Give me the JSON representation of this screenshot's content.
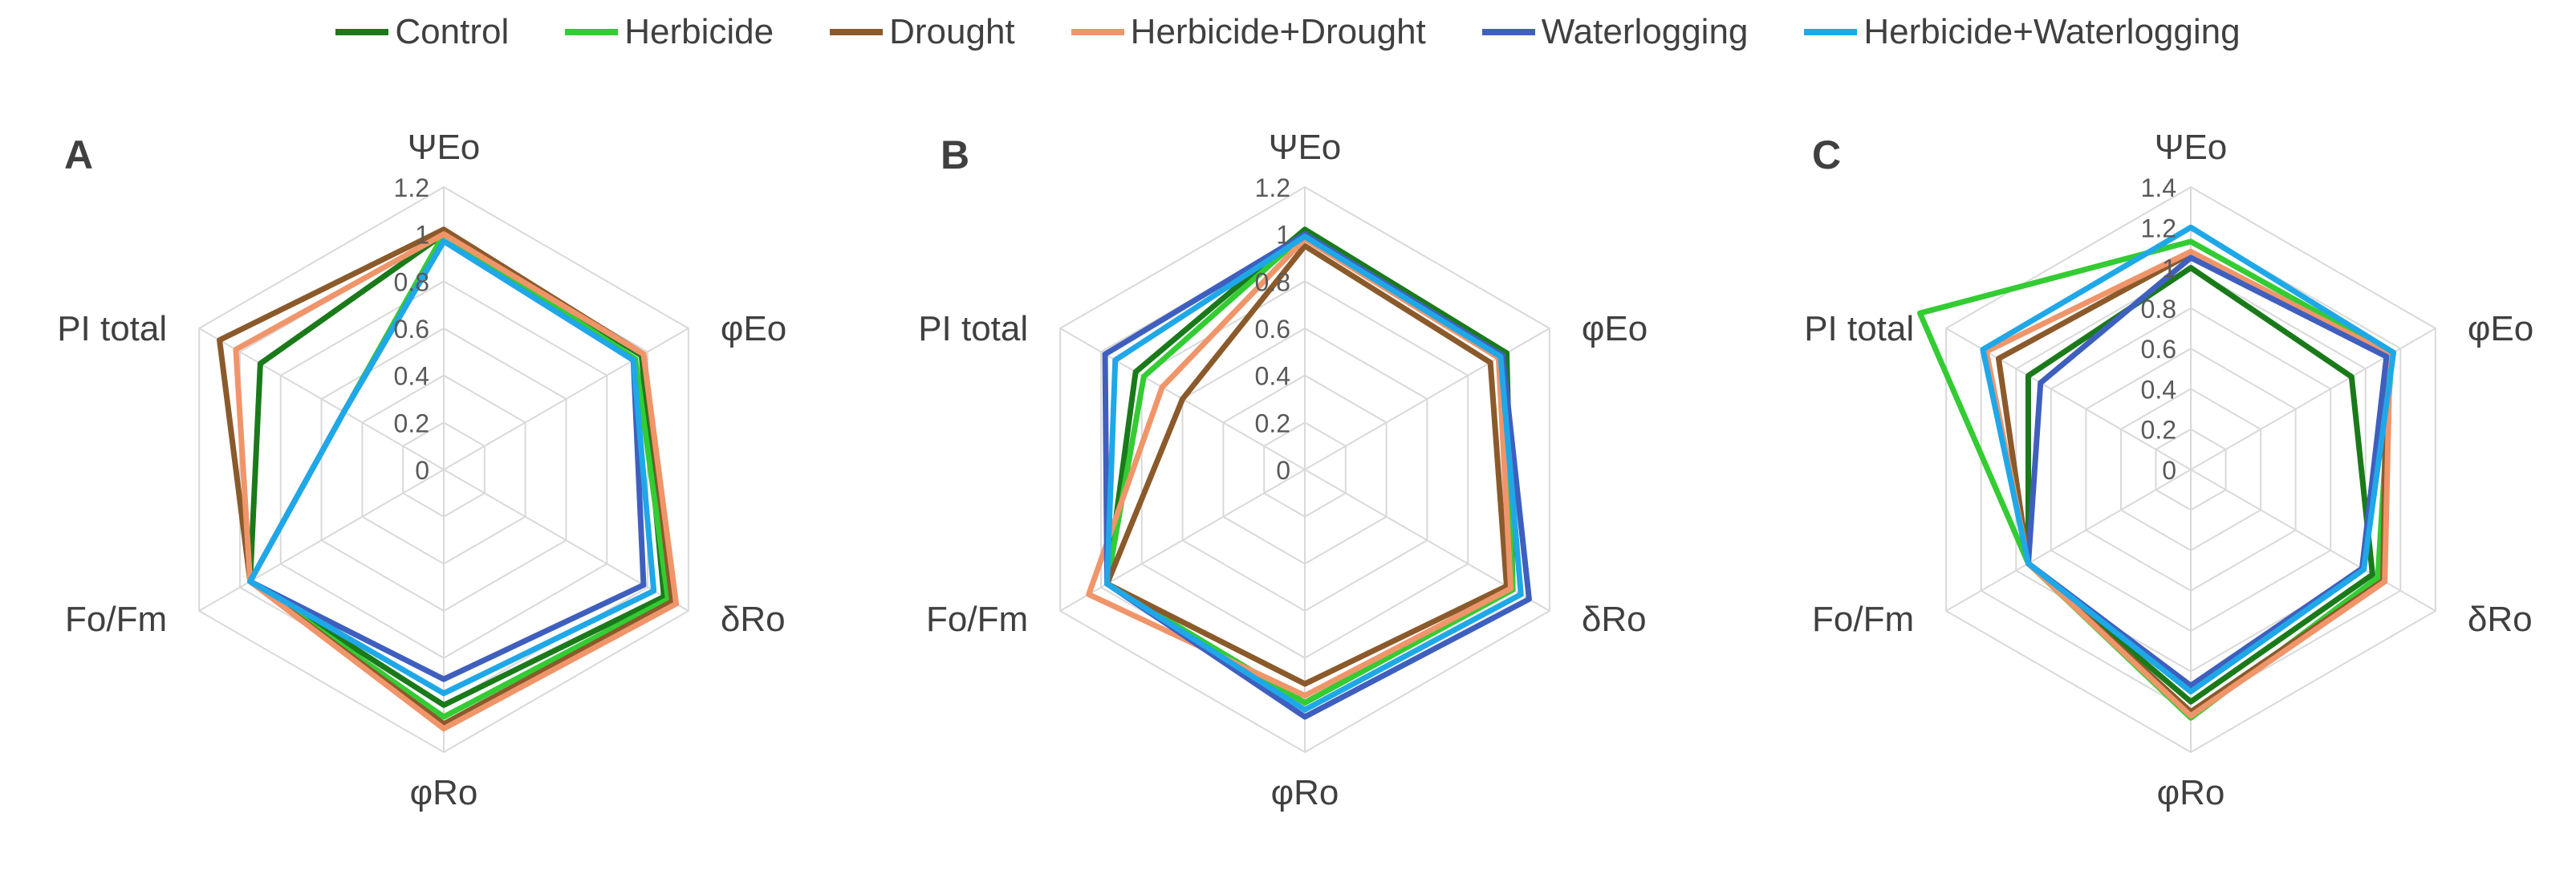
{
  "legend": [
    {
      "name": "Control",
      "color": "#1a7a1a"
    },
    {
      "name": "Herbicide",
      "color": "#33cc33"
    },
    {
      "name": "Drought",
      "color": "#8b5a2b"
    },
    {
      "name": "Herbicide+Drought",
      "color": "#f0956a"
    },
    {
      "name": "Waterlogging",
      "color": "#3f5fbf"
    },
    {
      "name": "Herbicide+Waterlogging",
      "color": "#1fa8e8"
    }
  ],
  "chart_data": [
    {
      "type": "radar",
      "panel_label": "A",
      "axes": [
        "ΨEo",
        "φEo",
        "δRo",
        "φRo",
        "Fo/Fm",
        "PI total"
      ],
      "rmax": 1.2,
      "ticks": [
        "0",
        "0.2",
        "0.4",
        "0.6",
        "0.8",
        "1",
        "1.2"
      ],
      "tick_values": [
        0,
        0.2,
        0.4,
        0.6,
        0.8,
        1.0,
        1.2
      ],
      "series": [
        {
          "name": "Control",
          "values": [
            1.0,
            0.97,
            1.08,
            1.0,
            0.95,
            0.9
          ]
        },
        {
          "name": "Herbicide",
          "values": [
            1.0,
            0.94,
            1.1,
            1.05,
            0.95,
            0.49
          ]
        },
        {
          "name": "Drought",
          "values": [
            1.02,
            0.98,
            1.12,
            1.08,
            0.95,
            1.1
          ]
        },
        {
          "name": "Herbicide+Drought",
          "values": [
            1.0,
            0.98,
            1.14,
            1.1,
            0.95,
            1.02
          ]
        },
        {
          "name": "Waterlogging",
          "values": [
            0.97,
            0.93,
            0.98,
            0.89,
            0.95,
            0.49
          ]
        },
        {
          "name": "Herbicide+Waterlogging",
          "values": [
            0.97,
            0.93,
            1.03,
            0.95,
            0.95,
            0.49
          ]
        }
      ]
    },
    {
      "type": "radar",
      "panel_label": "B",
      "axes": [
        "ΨEo",
        "φEo",
        "δRo",
        "φRo",
        "Fo/Fm",
        "PI total"
      ],
      "rmax": 1.2,
      "ticks": [
        "0",
        "0.2",
        "0.4",
        "0.6",
        "0.8",
        "1",
        "1.2"
      ],
      "tick_values": [
        0,
        0.2,
        0.4,
        0.6,
        0.8,
        1.0,
        1.2
      ],
      "series": [
        {
          "name": "Control",
          "values": [
            1.02,
            0.99,
            1.02,
            0.99,
            0.97,
            0.83
          ]
        },
        {
          "name": "Herbicide",
          "values": [
            1.0,
            0.97,
            1.02,
            0.99,
            0.97,
            0.79
          ]
        },
        {
          "name": "Drought",
          "values": [
            0.95,
            0.91,
            0.99,
            0.91,
            0.97,
            0.6
          ]
        },
        {
          "name": "Herbicide+Drought",
          "values": [
            0.98,
            0.95,
            1.01,
            0.96,
            1.06,
            0.7
          ]
        },
        {
          "name": "Waterlogging",
          "values": [
            1.0,
            0.97,
            1.1,
            1.05,
            0.97,
            0.98
          ]
        },
        {
          "name": "Herbicide+Waterlogging",
          "values": [
            0.99,
            0.96,
            1.06,
            1.02,
            0.97,
            0.93
          ]
        }
      ]
    },
    {
      "type": "radar",
      "panel_label": "C",
      "axes": [
        "ΨEo",
        "φEo",
        "δRo",
        "φRo",
        "Fo/Fm",
        "PI total"
      ],
      "rmax": 1.4,
      "ticks": [
        "0",
        "0.2",
        "0.4",
        "0.6",
        "0.8",
        "1",
        "1.2",
        "1.4"
      ],
      "tick_values": [
        0,
        0.2,
        0.4,
        0.6,
        0.8,
        1.0,
        1.2,
        1.4
      ],
      "series": [
        {
          "name": "Control",
          "values": [
            1.0,
            0.92,
            1.04,
            1.15,
            0.93,
            0.93
          ]
        },
        {
          "name": "Herbicide",
          "values": [
            1.13,
            1.15,
            1.07,
            1.23,
            0.93,
            1.55
          ]
        },
        {
          "name": "Drought",
          "values": [
            1.07,
            1.12,
            1.1,
            1.2,
            0.93,
            1.1
          ]
        },
        {
          "name": "Herbicide+Drought",
          "values": [
            1.08,
            1.14,
            1.11,
            1.22,
            0.93,
            1.17
          ]
        },
        {
          "name": "Waterlogging",
          "values": [
            1.05,
            1.12,
            0.98,
            1.07,
            0.93,
            0.86
          ]
        },
        {
          "name": "Herbicide+Waterlogging",
          "values": [
            1.2,
            1.16,
            0.99,
            1.1,
            0.93,
            1.19
          ]
        }
      ]
    }
  ]
}
